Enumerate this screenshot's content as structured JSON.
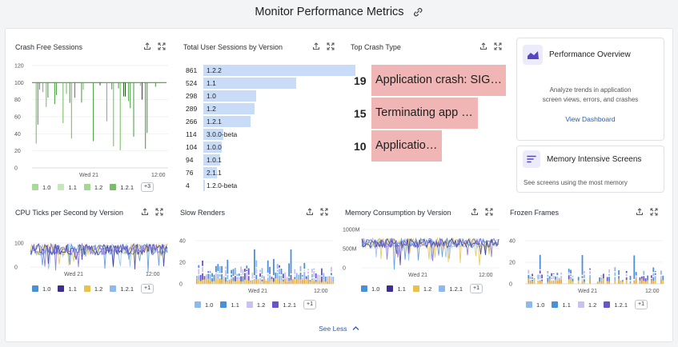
{
  "page": {
    "title": "Monitor Performance Metrics"
  },
  "colors": {
    "v10": "#a9d99a",
    "v11": "#8fcb7e",
    "v12": "#6fb95c",
    "v121": "#3f9a35",
    "blue1": "#4a90d9",
    "navy": "#3b2f8f",
    "gold": "#e8c24a",
    "lightblue": "#8fb8ec",
    "lavender": "#c9c2ef",
    "purple": "#6a55c8"
  },
  "crash_free": {
    "title": "Crash Free Sessions",
    "legend": [
      "1.0",
      "1.1",
      "1.2",
      "1.2.1"
    ],
    "more": "+3",
    "chart_data": {
      "type": "bar",
      "yticks": [
        "120",
        "100",
        "80",
        "60",
        "40",
        "20",
        "0"
      ],
      "xticks": [
        "Wed 21",
        "12:00"
      ],
      "ylim": [
        0,
        120
      ]
    }
  },
  "sessions_by_version": {
    "title": "Total User Sessions by Version",
    "chart_data": {
      "type": "bar",
      "categories": [
        "1.2.2",
        "1.1",
        "1.0",
        "1.2",
        "1.2.1",
        "3.0.0-beta",
        "1.0.0",
        "1.0.1",
        "2.1.1",
        "1.2.0-beta"
      ],
      "values": [
        861,
        524,
        298,
        289,
        266,
        114,
        104,
        94,
        76,
        4
      ]
    }
  },
  "top_crash": {
    "title": "Top Crash Type",
    "chart_data": {
      "type": "bar",
      "categories": [
        "Application crash: SIGTR...",
        "Terminating app due to ...",
        "Application crash: SIGAB..."
      ],
      "values": [
        19,
        15,
        10
      ]
    }
  },
  "performance_overview": {
    "title": "Performance Overview",
    "desc_line1": "Analyze trends in application",
    "desc_line2": "screen views, errors, and crashes",
    "link": "View Dashboard"
  },
  "memory_screens": {
    "title": "Memory Intensive Screens",
    "desc": "See screens using the most memory"
  },
  "cpu": {
    "title": "CPU Ticks per Second by Version",
    "legend": [
      "1.0",
      "1.1",
      "1.2",
      "1.2.1"
    ],
    "more": "+1",
    "chart_data": {
      "type": "line",
      "yticks": [
        "100",
        "0"
      ],
      "xticks": [
        "Wed 21",
        "12:00"
      ]
    }
  },
  "slow_renders": {
    "title": "Slow Renders",
    "legend": [
      "1.0",
      "1.1",
      "1.2",
      "1.2.1"
    ],
    "more": "+1",
    "chart_data": {
      "type": "bar",
      "yticks": [
        "40",
        "20",
        "0"
      ],
      "xticks": [
        "Wed 21",
        "12:00"
      ]
    }
  },
  "memory": {
    "title": "Memory Consumption by Version",
    "legend": [
      "1.0",
      "1.1",
      "1.2",
      "1.2.1"
    ],
    "more": "+1",
    "chart_data": {
      "type": "line",
      "yticks": [
        "1000M",
        "500M",
        "0"
      ],
      "xticks": [
        "Wed 21",
        "12:00"
      ]
    }
  },
  "frozen": {
    "title": "Frozen Frames",
    "legend": [
      "1.0",
      "1.1",
      "1.2",
      "1.2.1"
    ],
    "more": "+1",
    "chart_data": {
      "type": "bar",
      "yticks": [
        "40",
        "20",
        "0"
      ],
      "xticks": [
        "Wed 21",
        "12:00"
      ]
    }
  },
  "footer": {
    "see_less": "See Less"
  }
}
